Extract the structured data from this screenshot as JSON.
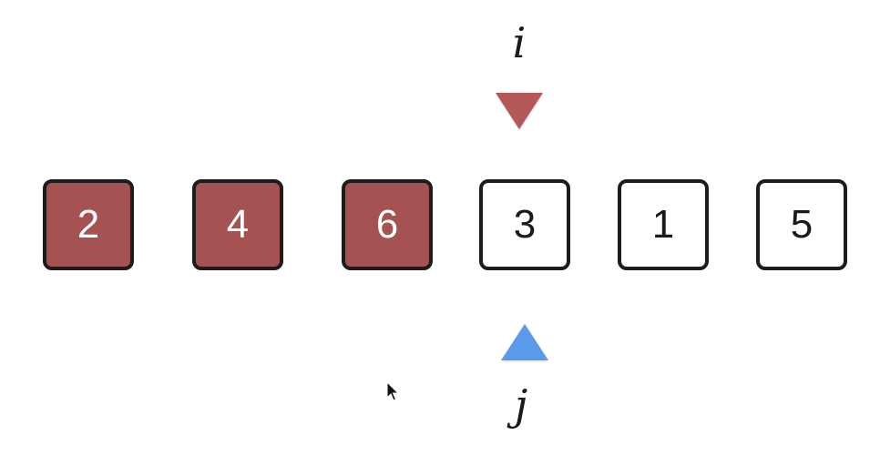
{
  "pointers": {
    "i": {
      "label": "i",
      "color": "#b45858",
      "index": 3
    },
    "j": {
      "label": "j",
      "color": "#5b9ae8",
      "index": 3
    }
  },
  "array": {
    "cells": [
      {
        "value": "2",
        "state": "highlighted"
      },
      {
        "value": "4",
        "state": "highlighted"
      },
      {
        "value": "6",
        "state": "highlighted"
      },
      {
        "value": "3",
        "state": "default"
      },
      {
        "value": "1",
        "state": "default"
      },
      {
        "value": "5",
        "state": "default"
      }
    ],
    "highlight_color": "#a55252",
    "default_color": "#ffffff"
  },
  "cursor": {
    "icon": "mouse-pointer-icon"
  }
}
